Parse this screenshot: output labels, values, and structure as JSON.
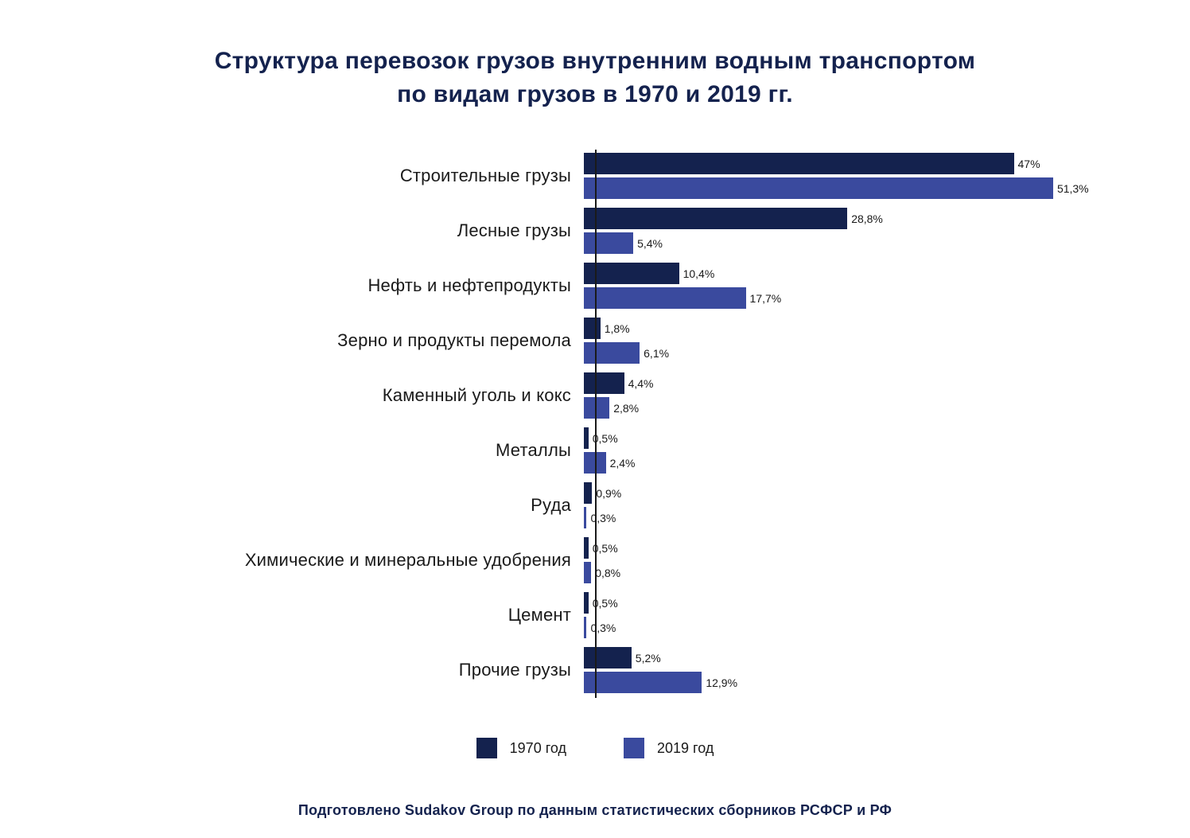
{
  "title_line1": "Структура перевозок грузов внутренним водным транспортом",
  "title_line2": "по видам грузов в 1970 и 2019 гг.",
  "footer": "Подготовлено Sudakov Group по данным статистических сборников РСФСР и РФ",
  "legend": [
    {
      "label": "1970 год",
      "color": "#14224e"
    },
    {
      "label": "2019 год",
      "color": "#3a4a9e"
    }
  ],
  "chart_data": {
    "type": "bar",
    "orientation": "horizontal",
    "title": "Структура перевозок грузов внутренним водным транспортом по видам грузов в 1970 и 2019 гг.",
    "xlabel": "",
    "ylabel": "",
    "xlim": [
      0,
      55
    ],
    "grid": false,
    "legend_position": "bottom",
    "value_suffix": "%",
    "categories": [
      "Строительные грузы",
      "Лесные грузы",
      "Нефть и нефтепродукты",
      "Зерно и продукты перемола",
      "Каменный уголь и кокс",
      "Металлы",
      "Руда",
      "Химические и минеральные удобрения",
      "Цемент",
      "Прочие грузы"
    ],
    "series": [
      {
        "name": "1970 год",
        "key": "1970",
        "color": "#14224e",
        "values": [
          47,
          28.8,
          10.4,
          1.8,
          4.4,
          0.5,
          0.9,
          0.5,
          0.5,
          5.2
        ],
        "labels": [
          "47%",
          "28,8%",
          "10,4%",
          "1,8%",
          "4,4%",
          "0,5%",
          "0,9%",
          "0,5%",
          "0,5%",
          "5,2%"
        ]
      },
      {
        "name": "2019 год",
        "key": "2019",
        "color": "#3a4a9e",
        "values": [
          51.3,
          5.4,
          17.7,
          6.1,
          2.8,
          2.4,
          0.3,
          0.8,
          0.3,
          12.9
        ],
        "labels": [
          "51,3%",
          "5,4%",
          "17,7%",
          "6,1%",
          "2,8%",
          "2,4%",
          "0,3%",
          "0,8%",
          "0,3%",
          "12,9%"
        ]
      }
    ]
  }
}
